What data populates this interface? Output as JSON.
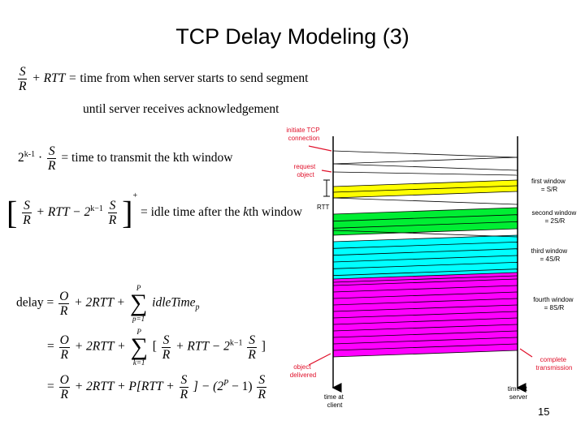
{
  "title": "TCP Delay Modeling (3)",
  "page_number": "15",
  "equations": {
    "eq1": {
      "frac_num": "S",
      "frac_den": "R",
      "rtt_term": "+ RTT =",
      "text": "time from when server starts to send segment",
      "line2": "until server receives acknowledgement"
    },
    "eq2": {
      "base": "2",
      "exponent": "k-1",
      "frac_num": "S",
      "frac_den": "R",
      "text": "= time to transmit the kth window"
    },
    "eq3": {
      "frac1_num": "S",
      "frac1_den": "R",
      "mid": "+ RTT − 2",
      "exponent": "k−1",
      "frac2_num": "S",
      "frac2_den": "R",
      "plus_sup": "+",
      "text_before": "= idle time after the ",
      "text_k": "k",
      "text_after": "th window"
    },
    "eq4": {
      "label": "delay =",
      "frac_num": "O",
      "frac_den": "R",
      "mid": "+ 2RTT +",
      "sum_top": "P",
      "sum_bottom": "p=1",
      "term": "idleTime",
      "term_sub": "p"
    },
    "eq5": {
      "lead": "=",
      "frac_num": "O",
      "frac_den": "R",
      "mid": "+ 2RTT +",
      "sum_top": "P",
      "sum_bottom": "k=1",
      "open": "[",
      "f1_num": "S",
      "f1_den": "R",
      "mid2": "+ RTT − 2",
      "exponent": "k−1",
      "f2_num": "S",
      "f2_den": "R",
      "close": "]"
    },
    "eq6": {
      "lead": "=",
      "frac_num": "O",
      "frac_den": "R",
      "mid": "+ 2RTT + P[RTT +",
      "f1_num": "S",
      "f1_den": "R",
      "mid2": "] − (2",
      "exponent": "P",
      "mid3": "− 1)",
      "f2_num": "S",
      "f2_den": "R"
    }
  },
  "diagram": {
    "labels": {
      "initiate": [
        "initiate TCP",
        "connection"
      ],
      "request": [
        "request",
        "object"
      ],
      "rtt": "RTT",
      "object_delivered": [
        "object",
        "delivered"
      ],
      "time_client": [
        "time at",
        "client"
      ],
      "time_server": [
        "time at",
        "server"
      ],
      "first_window": [
        "first window",
        "= S/R"
      ],
      "second_window": [
        "second window",
        "= 2S/R"
      ],
      "third_window": [
        "third window",
        "= 4S/R"
      ],
      "fourth_window": [
        "fourth window",
        "= 8S/R"
      ],
      "complete": [
        "complete",
        "transmission"
      ]
    },
    "colors": {
      "window1": "#ffff00",
      "window2": "#00ee33",
      "window3": "#00ffff",
      "window4": "#ff00ff",
      "annotation": "#e0102a"
    }
  }
}
